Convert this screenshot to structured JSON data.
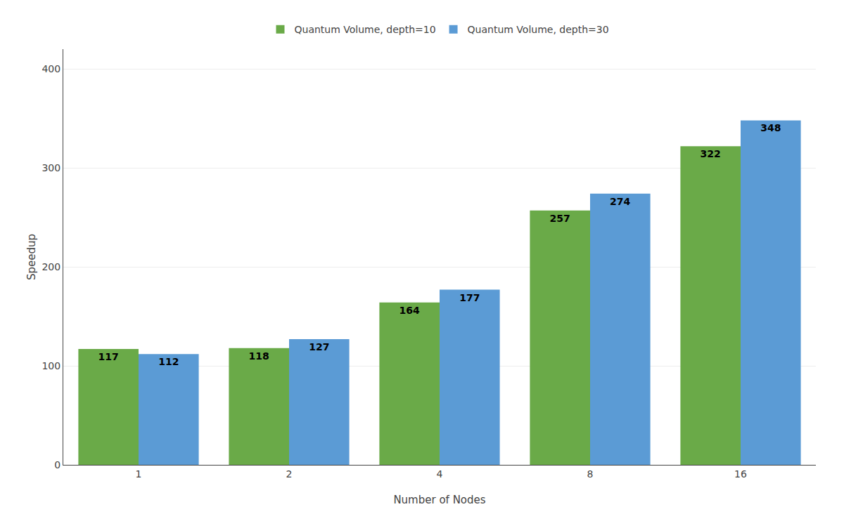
{
  "chart_data": {
    "type": "bar",
    "categories": [
      "1",
      "2",
      "4",
      "8",
      "16"
    ],
    "series": [
      {
        "name": "Quantum Volume, depth=10",
        "color": "#6aaa48",
        "values": [
          117,
          118,
          164,
          257,
          322
        ]
      },
      {
        "name": "Quantum Volume, depth=30",
        "color": "#5b9bd5",
        "values": [
          112,
          127,
          177,
          274,
          348
        ]
      }
    ],
    "xlabel": "Number of Nodes",
    "ylabel": "Speedup",
    "ylim": [
      0,
      420
    ],
    "yticks": [
      0,
      100,
      200,
      300,
      400
    ],
    "grid": true,
    "legend": "top",
    "data_labels": true
  }
}
